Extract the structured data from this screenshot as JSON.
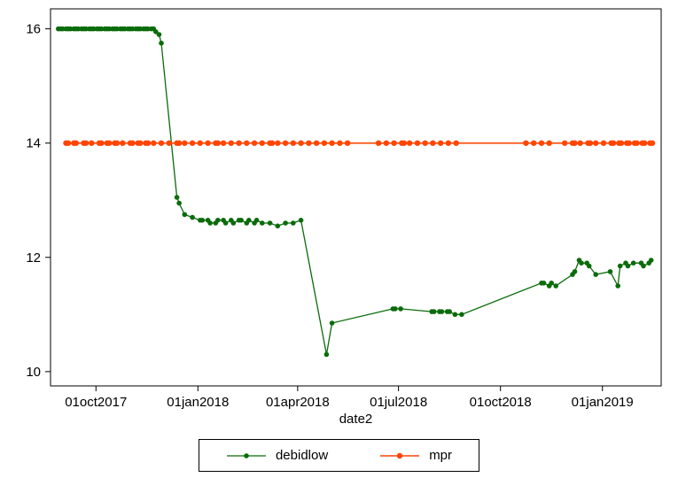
{
  "figure": {
    "background": "#ffffff"
  },
  "chart_data": {
    "type": "line",
    "title": "",
    "xlabel": "date2",
    "ylabel": "",
    "ylim": [
      10,
      16
    ],
    "axis_ylim": [
      9.75,
      16.35
    ],
    "xlim": [
      "2017-08-21",
      "2019-02-23"
    ],
    "grid": false,
    "legend_position": "bottom-center",
    "yticks": [
      10,
      12,
      14,
      16
    ],
    "xticks": [
      {
        "date": "2017-10-01",
        "label": "01oct2017"
      },
      {
        "date": "2018-01-01",
        "label": "01jan2018"
      },
      {
        "date": "2018-04-01",
        "label": "01apr2018"
      },
      {
        "date": "2018-07-01",
        "label": "01jul2018"
      },
      {
        "date": "2018-10-01",
        "label": "01oct2018"
      },
      {
        "date": "2019-01-01",
        "label": "01jan2019"
      }
    ],
    "series": [
      {
        "name": "debidlow",
        "color": "#0a6b0a",
        "marker": "circle",
        "marker_size": 2.8,
        "line_width": 1.3,
        "points": [
          [
            "2017-08-28",
            16
          ],
          [
            "2017-08-30",
            16
          ],
          [
            "2017-09-01",
            16
          ],
          [
            "2017-09-04",
            16
          ],
          [
            "2017-09-06",
            16
          ],
          [
            "2017-09-08",
            16
          ],
          [
            "2017-09-11",
            16
          ],
          [
            "2017-09-13",
            16
          ],
          [
            "2017-09-15",
            16
          ],
          [
            "2017-09-18",
            16
          ],
          [
            "2017-09-20",
            16
          ],
          [
            "2017-09-22",
            16
          ],
          [
            "2017-09-25",
            16
          ],
          [
            "2017-09-27",
            16
          ],
          [
            "2017-09-29",
            16
          ],
          [
            "2017-10-02",
            16
          ],
          [
            "2017-10-04",
            16
          ],
          [
            "2017-10-06",
            16
          ],
          [
            "2017-10-09",
            16
          ],
          [
            "2017-10-11",
            16
          ],
          [
            "2017-10-13",
            16
          ],
          [
            "2017-10-16",
            16
          ],
          [
            "2017-10-18",
            16
          ],
          [
            "2017-10-20",
            16
          ],
          [
            "2017-10-23",
            16
          ],
          [
            "2017-10-25",
            16
          ],
          [
            "2017-10-27",
            16
          ],
          [
            "2017-10-30",
            16
          ],
          [
            "2017-11-01",
            16
          ],
          [
            "2017-11-03",
            16
          ],
          [
            "2017-11-06",
            16
          ],
          [
            "2017-11-08",
            16
          ],
          [
            "2017-11-10",
            16
          ],
          [
            "2017-11-13",
            16
          ],
          [
            "2017-11-15",
            16
          ],
          [
            "2017-11-17",
            16
          ],
          [
            "2017-11-20",
            16
          ],
          [
            "2017-11-22",
            16
          ],
          [
            "2017-11-24",
            15.95
          ],
          [
            "2017-11-27",
            15.9
          ],
          [
            "2017-11-29",
            15.75
          ],
          [
            "2017-12-13",
            13.05
          ],
          [
            "2017-12-15",
            12.95
          ],
          [
            "2017-12-20",
            12.75
          ],
          [
            "2017-12-27",
            12.7
          ],
          [
            "2018-01-03",
            12.65
          ],
          [
            "2018-01-05",
            12.65
          ],
          [
            "2018-01-10",
            12.65
          ],
          [
            "2018-01-12",
            12.6
          ],
          [
            "2018-01-17",
            12.6
          ],
          [
            "2018-01-19",
            12.65
          ],
          [
            "2018-01-24",
            12.65
          ],
          [
            "2018-01-26",
            12.6
          ],
          [
            "2018-01-31",
            12.65
          ],
          [
            "2018-02-02",
            12.6
          ],
          [
            "2018-02-07",
            12.65
          ],
          [
            "2018-02-09",
            12.65
          ],
          [
            "2018-02-14",
            12.6
          ],
          [
            "2018-02-16",
            12.65
          ],
          [
            "2018-02-21",
            12.6
          ],
          [
            "2018-02-23",
            12.65
          ],
          [
            "2018-02-28",
            12.6
          ],
          [
            "2018-03-07",
            12.6
          ],
          [
            "2018-03-14",
            12.55
          ],
          [
            "2018-03-21",
            12.6
          ],
          [
            "2018-03-28",
            12.6
          ],
          [
            "2018-04-04",
            12.65
          ],
          [
            "2018-04-27",
            10.3
          ],
          [
            "2018-05-02",
            10.85
          ],
          [
            "2018-06-26",
            11.1
          ],
          [
            "2018-06-28",
            11.1
          ],
          [
            "2018-07-03",
            11.1
          ],
          [
            "2018-07-31",
            11.05
          ],
          [
            "2018-08-02",
            11.05
          ],
          [
            "2018-08-07",
            11.05
          ],
          [
            "2018-08-09",
            11.05
          ],
          [
            "2018-08-14",
            11.05
          ],
          [
            "2018-08-16",
            11.05
          ],
          [
            "2018-08-21",
            11.0
          ],
          [
            "2018-08-27",
            11.0
          ],
          [
            "2018-11-07",
            11.55
          ],
          [
            "2018-11-09",
            11.55
          ],
          [
            "2018-11-14",
            11.5
          ],
          [
            "2018-11-16",
            11.55
          ],
          [
            "2018-11-20",
            11.5
          ],
          [
            "2018-12-05",
            11.7
          ],
          [
            "2018-12-07",
            11.75
          ],
          [
            "2018-12-11",
            11.95
          ],
          [
            "2018-12-13",
            11.9
          ],
          [
            "2018-12-18",
            11.9
          ],
          [
            "2018-12-20",
            11.85
          ],
          [
            "2018-12-26",
            11.7
          ],
          [
            "2019-01-08",
            11.75
          ],
          [
            "2019-01-15",
            11.5
          ],
          [
            "2019-01-17",
            11.85
          ],
          [
            "2019-01-22",
            11.9
          ],
          [
            "2019-01-24",
            11.85
          ],
          [
            "2019-01-29",
            11.9
          ],
          [
            "2019-02-05",
            11.9
          ],
          [
            "2019-02-07",
            11.85
          ],
          [
            "2019-02-12",
            11.9
          ],
          [
            "2019-02-14",
            11.95
          ]
        ]
      },
      {
        "name": "mpr",
        "color": "#ff4500",
        "marker": "circle",
        "marker_size": 3.2,
        "line_width": 1.6,
        "points": [
          [
            "2017-09-04",
            14
          ],
          [
            "2017-09-06",
            14
          ],
          [
            "2017-09-11",
            14
          ],
          [
            "2017-09-13",
            14
          ],
          [
            "2017-09-20",
            14
          ],
          [
            "2017-09-22",
            14
          ],
          [
            "2017-09-27",
            14
          ],
          [
            "2017-10-04",
            14
          ],
          [
            "2017-10-06",
            14
          ],
          [
            "2017-10-11",
            14
          ],
          [
            "2017-10-13",
            14
          ],
          [
            "2017-10-18",
            14
          ],
          [
            "2017-10-20",
            14
          ],
          [
            "2017-10-25",
            14
          ],
          [
            "2017-11-01",
            14
          ],
          [
            "2017-11-03",
            14
          ],
          [
            "2017-11-08",
            14
          ],
          [
            "2017-11-10",
            14
          ],
          [
            "2017-11-15",
            14
          ],
          [
            "2017-11-17",
            14
          ],
          [
            "2017-11-22",
            14
          ],
          [
            "2017-11-29",
            14
          ],
          [
            "2017-12-06",
            14
          ],
          [
            "2017-12-13",
            14
          ],
          [
            "2017-12-15",
            14
          ],
          [
            "2017-12-20",
            14
          ],
          [
            "2017-12-27",
            14
          ],
          [
            "2018-01-03",
            14
          ],
          [
            "2018-01-10",
            14
          ],
          [
            "2018-01-17",
            14
          ],
          [
            "2018-01-19",
            14
          ],
          [
            "2018-01-24",
            14
          ],
          [
            "2018-01-31",
            14
          ],
          [
            "2018-02-07",
            14
          ],
          [
            "2018-02-14",
            14
          ],
          [
            "2018-02-21",
            14
          ],
          [
            "2018-02-28",
            14
          ],
          [
            "2018-03-07",
            14
          ],
          [
            "2018-03-09",
            14
          ],
          [
            "2018-03-14",
            14
          ],
          [
            "2018-03-21",
            14
          ],
          [
            "2018-03-28",
            14
          ],
          [
            "2018-04-04",
            14
          ],
          [
            "2018-04-11",
            14
          ],
          [
            "2018-04-18",
            14
          ],
          [
            "2018-04-25",
            14
          ],
          [
            "2018-05-02",
            14
          ],
          [
            "2018-05-09",
            14
          ],
          [
            "2018-05-16",
            14
          ],
          [
            "2018-06-13",
            14
          ],
          [
            "2018-06-20",
            14
          ],
          [
            "2018-06-27",
            14
          ],
          [
            "2018-07-04",
            14
          ],
          [
            "2018-07-06",
            14
          ],
          [
            "2018-07-11",
            14
          ],
          [
            "2018-07-18",
            14
          ],
          [
            "2018-07-25",
            14
          ],
          [
            "2018-08-01",
            14
          ],
          [
            "2018-08-08",
            14
          ],
          [
            "2018-08-15",
            14
          ],
          [
            "2018-08-22",
            14
          ],
          [
            "2018-10-24",
            14
          ],
          [
            "2018-10-31",
            14
          ],
          [
            "2018-11-07",
            14
          ],
          [
            "2018-11-14",
            14
          ],
          [
            "2018-11-28",
            14
          ],
          [
            "2018-12-05",
            14
          ],
          [
            "2018-12-07",
            14
          ],
          [
            "2018-12-12",
            14
          ],
          [
            "2018-12-19",
            14
          ],
          [
            "2018-12-21",
            14
          ],
          [
            "2018-12-26",
            14
          ],
          [
            "2019-01-02",
            14
          ],
          [
            "2019-01-09",
            14
          ],
          [
            "2019-01-11",
            14
          ],
          [
            "2019-01-16",
            14
          ],
          [
            "2019-01-18",
            14
          ],
          [
            "2019-01-23",
            14
          ],
          [
            "2019-01-25",
            14
          ],
          [
            "2019-01-30",
            14
          ],
          [
            "2019-02-01",
            14
          ],
          [
            "2019-02-06",
            14
          ],
          [
            "2019-02-08",
            14
          ],
          [
            "2019-02-13",
            14
          ],
          [
            "2019-02-15",
            14
          ]
        ]
      }
    ]
  },
  "legend": {
    "items": [
      {
        "label": "debidlow"
      },
      {
        "label": "mpr"
      }
    ]
  }
}
